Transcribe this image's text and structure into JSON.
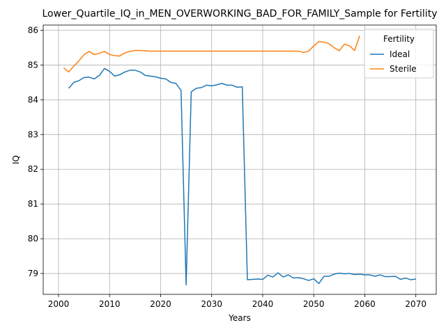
{
  "chart_data": {
    "type": "line",
    "title": "Lower_Quartile_IQ_in_MEN_OVERWORKING_BAD_FOR_FAMILY_Sample for Fertility",
    "xlabel": "Years",
    "ylabel": "IQ",
    "xlim": [
      1997,
      2074
    ],
    "ylim": [
      78.4,
      86.15
    ],
    "xticks": [
      2000,
      2010,
      2020,
      2030,
      2040,
      2050,
      2060,
      2070
    ],
    "yticks": [
      79,
      80,
      81,
      82,
      83,
      84,
      85,
      86
    ],
    "grid": true,
    "legend": {
      "title": "Fertility",
      "placement": "upper-right"
    },
    "series": [
      {
        "name": "Ideal",
        "color": "#1f77b4",
        "x": [
          2002,
          2003,
          2004,
          2005,
          2006,
          2007,
          2008,
          2009,
          2010,
          2011,
          2012,
          2013,
          2014,
          2015,
          2016,
          2017,
          2018,
          2019,
          2020,
          2021,
          2022,
          2023,
          2024,
          2025,
          2026,
          2027,
          2028,
          2029,
          2030,
          2031,
          2032,
          2033,
          2034,
          2035,
          2036,
          2037,
          2038,
          2039,
          2040,
          2041,
          2042,
          2043,
          2044,
          2045,
          2046,
          2047,
          2048,
          2049,
          2050,
          2051,
          2052,
          2053,
          2054,
          2055,
          2056,
          2057,
          2058,
          2059,
          2060,
          2061,
          2062,
          2063,
          2064,
          2065,
          2066,
          2067,
          2068,
          2069,
          2070
        ],
        "values": [
          84.33,
          84.5,
          84.55,
          84.64,
          84.65,
          84.6,
          84.7,
          84.9,
          84.82,
          84.68,
          84.72,
          84.8,
          84.85,
          84.85,
          84.8,
          84.7,
          84.68,
          84.66,
          84.62,
          84.6,
          84.5,
          84.47,
          84.27,
          78.67,
          84.23,
          84.33,
          84.35,
          84.42,
          84.4,
          84.43,
          84.47,
          84.42,
          84.42,
          84.36,
          84.37,
          78.82,
          78.83,
          78.84,
          78.83,
          78.95,
          78.9,
          79.02,
          78.9,
          78.96,
          78.87,
          78.88,
          78.85,
          78.8,
          78.85,
          78.71,
          78.92,
          78.92,
          78.98,
          79.01,
          78.99,
          79.0,
          78.97,
          78.98,
          78.96,
          78.96,
          78.92,
          78.96,
          78.91,
          78.91,
          78.92,
          78.83,
          78.87,
          78.82,
          78.84
        ]
      },
      {
        "name": "Sterile",
        "color": "#ff7f0e",
        "x": [
          2001,
          2002,
          2003,
          2004,
          2005,
          2006,
          2007,
          2008,
          2009,
          2010,
          2011,
          2012,
          2013,
          2014,
          2015,
          2016,
          2017,
          2018,
          2019,
          2020,
          2021,
          2022,
          2023,
          2024,
          2025,
          2026,
          2027,
          2028,
          2029,
          2030,
          2031,
          2032,
          2033,
          2034,
          2035,
          2036,
          2037,
          2038,
          2039,
          2040,
          2041,
          2042,
          2043,
          2044,
          2045,
          2046,
          2047,
          2048,
          2049,
          2050,
          2051,
          2052,
          2053,
          2054,
          2055,
          2056,
          2057,
          2058,
          2059
        ],
        "values": [
          84.92,
          84.8,
          84.97,
          85.12,
          85.3,
          85.39,
          85.3,
          85.34,
          85.39,
          85.3,
          85.27,
          85.26,
          85.35,
          85.39,
          85.42,
          85.42,
          85.41,
          85.4,
          85.4,
          85.4,
          85.4,
          85.4,
          85.4,
          85.4,
          85.4,
          85.4,
          85.4,
          85.4,
          85.4,
          85.4,
          85.4,
          85.4,
          85.4,
          85.4,
          85.4,
          85.4,
          85.4,
          85.4,
          85.4,
          85.4,
          85.4,
          85.4,
          85.4,
          85.4,
          85.4,
          85.4,
          85.4,
          85.36,
          85.4,
          85.55,
          85.67,
          85.66,
          85.61,
          85.5,
          85.41,
          85.6,
          85.55,
          85.42,
          85.84
        ]
      }
    ]
  }
}
